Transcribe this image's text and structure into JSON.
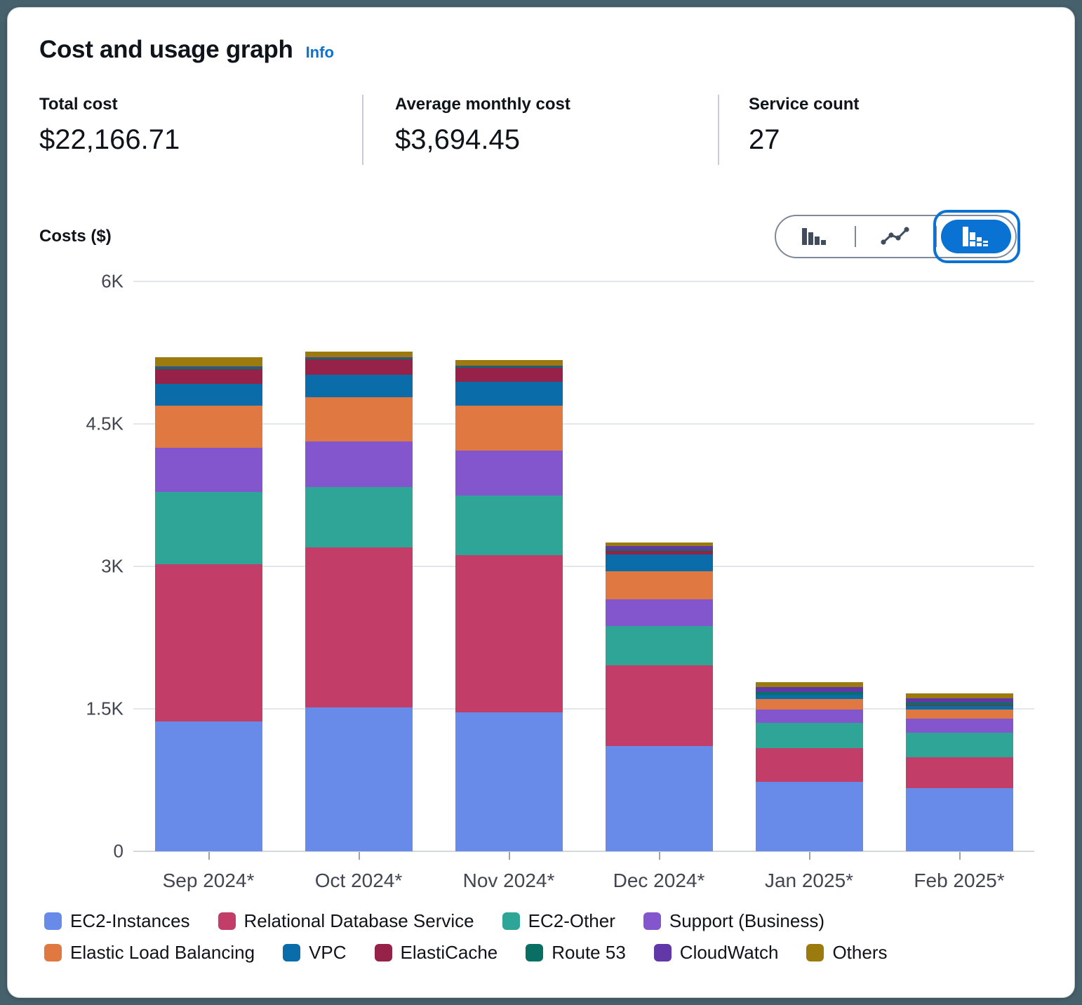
{
  "header": {
    "title": "Cost and usage graph",
    "info_label": "Info"
  },
  "stats": [
    {
      "label": "Total cost",
      "value": "$22,166.71"
    },
    {
      "label": "Average monthly cost",
      "value": "$3,694.45"
    },
    {
      "label": "Service count",
      "value": "27"
    }
  ],
  "chart_controls": {
    "axis_title": "Costs ($)",
    "toggle_options": [
      "bar-chart",
      "line-chart",
      "stacked-bar-chart"
    ],
    "selected_option": "stacked-bar-chart",
    "selected_color": "#0972d3"
  },
  "chart_data": {
    "type": "bar",
    "stacked": true,
    "title": "Cost and usage graph",
    "xlabel": "",
    "ylabel": "Costs ($)",
    "categories": [
      "Sep 2024*",
      "Oct 2024*",
      "Nov 2024*",
      "Dec 2024*",
      "Jan 2025*",
      "Feb 2025*"
    ],
    "ylim": [
      0,
      6000
    ],
    "y_ticks_top_to_bottom": [
      "6K",
      "4.5K",
      "3K",
      "1.5K",
      "0"
    ],
    "grid": true,
    "legend_position": "bottom",
    "series": [
      {
        "name": "EC2-Instances",
        "color": "#688ae8",
        "values": [
          1370,
          1515,
          1465,
          1110,
          730,
          665
        ]
      },
      {
        "name": "Relational Database Service",
        "color": "#c33d69",
        "values": [
          1650,
          1685,
          1650,
          850,
          360,
          325
        ]
      },
      {
        "name": "EC2-Other",
        "color": "#2ea597",
        "values": [
          760,
          635,
          630,
          415,
          265,
          260
        ]
      },
      {
        "name": "Support (Business)",
        "color": "#8456ce",
        "values": [
          470,
          480,
          475,
          280,
          140,
          150
        ]
      },
      {
        "name": "Elastic Load Balancing",
        "color": "#e07941",
        "values": [
          445,
          465,
          475,
          295,
          110,
          90
        ]
      },
      {
        "name": "VPC",
        "color": "#0a6ca9",
        "values": [
          230,
          235,
          245,
          175,
          40,
          40
        ]
      },
      {
        "name": "ElastiCache",
        "color": "#962249",
        "values": [
          155,
          165,
          150,
          40,
          5,
          5
        ]
      },
      {
        "name": "Route 53",
        "color": "#096f64",
        "values": [
          22,
          15,
          15,
          15,
          30,
          35
        ]
      },
      {
        "name": "CloudWatch",
        "color": "#6237a7",
        "values": [
          8,
          8,
          8,
          35,
          50,
          45
        ]
      },
      {
        "name": "Others",
        "color": "#9c7b0e",
        "values": [
          95,
          60,
          60,
          35,
          50,
          45
        ]
      }
    ]
  }
}
